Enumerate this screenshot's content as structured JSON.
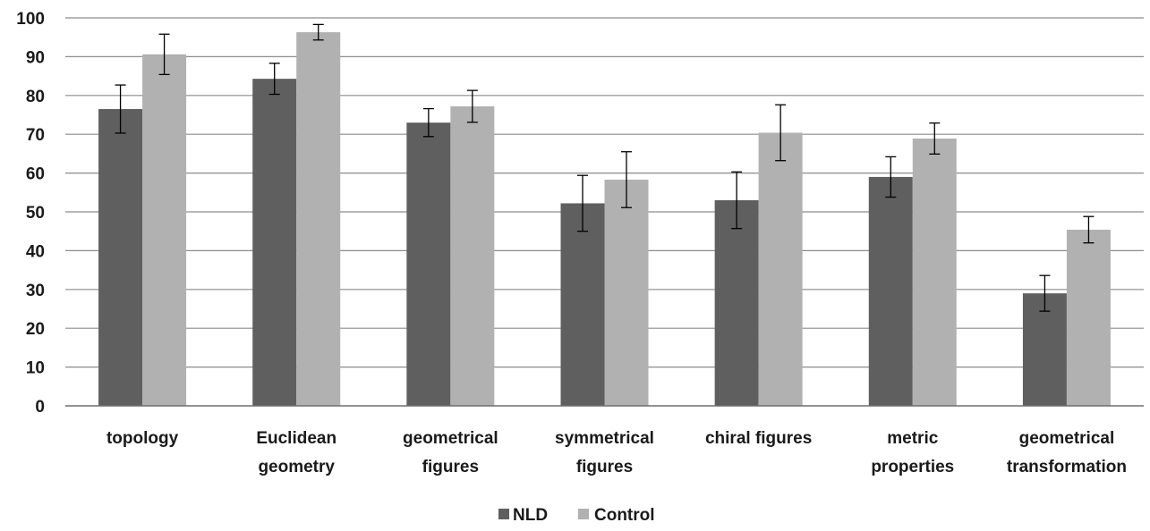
{
  "chart_data": {
    "type": "bar",
    "categories": [
      [
        "topology"
      ],
      [
        "Euclidean",
        "geometry"
      ],
      [
        "geometrical",
        "figures"
      ],
      [
        "symmetrical",
        "figures"
      ],
      [
        "chiral figures"
      ],
      [
        "metric",
        "properties"
      ],
      [
        "geometrical",
        "transformation"
      ]
    ],
    "series": [
      {
        "name": "NLD",
        "color": "#5f5f5f",
        "values": [
          76.5,
          84.3,
          73.0,
          52.2,
          53.0,
          59.0,
          29.0
        ],
        "error": [
          6.2,
          4.0,
          3.6,
          7.2,
          7.3,
          5.2,
          4.6
        ]
      },
      {
        "name": "Control",
        "color": "#b1b1b1",
        "values": [
          90.6,
          96.3,
          77.2,
          58.3,
          70.4,
          68.9,
          45.4
        ],
        "error": [
          5.2,
          2.0,
          4.1,
          7.2,
          7.2,
          4.0,
          3.4
        ]
      }
    ],
    "ylim": [
      0,
      100
    ],
    "yticks": [
      0,
      10,
      20,
      30,
      40,
      50,
      60,
      70,
      80,
      90,
      100
    ],
    "grid": true,
    "legend_position": "bottom",
    "title": "",
    "xlabel": "",
    "ylabel": ""
  }
}
